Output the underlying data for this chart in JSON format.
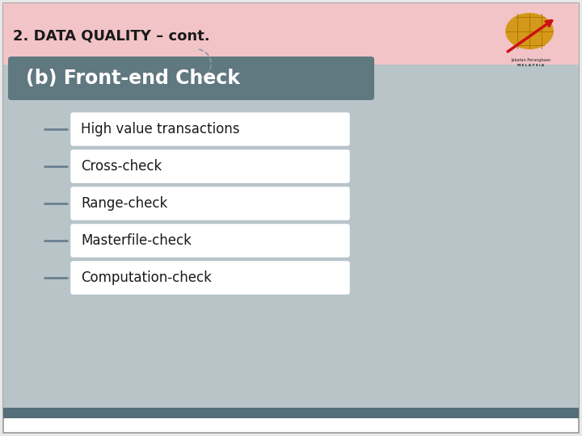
{
  "title": "2. DATA QUALITY – cont.",
  "title_fontsize": 13,
  "title_color": "#1a1a1a",
  "header_text": "(b) Front-end Check",
  "header_fontsize": 17,
  "header_bg_color": "#607880",
  "header_text_color": "#ffffff",
  "main_bg_color": "#b8c4c8",
  "top_bar_color": "#f2c4c8",
  "slide_bg": "#e8e8e8",
  "items": [
    "High value transactions",
    "Cross-check",
    "Range-check",
    "Masterfile-check",
    "Computation-check"
  ],
  "item_fontsize": 12,
  "item_box_color": "#ffffff",
  "item_text_color": "#1a1a1a",
  "bottom_bar_color": "#546e7a",
  "bullet_color": "#6a8090"
}
